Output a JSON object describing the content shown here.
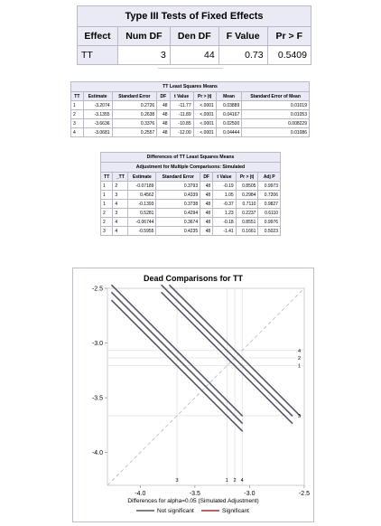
{
  "type3": {
    "title": "Type III Tests of Fixed Effects",
    "headers": [
      "Effect",
      "Num DF",
      "Den DF",
      "F Value",
      "Pr > F"
    ],
    "row": [
      "TT",
      "3",
      "44",
      "0.73",
      "0.5409"
    ]
  },
  "lsmeans": {
    "title": "TT Least Squares Means",
    "headers": [
      "TT",
      "Estimate",
      "Standard Error",
      "DF",
      "t Value",
      "Pr > |t|",
      "Mean",
      "Standard Error of Mean"
    ],
    "rows": [
      [
        "1",
        "-3.2074",
        "0.2726",
        "48",
        "-11.77",
        "<.0001",
        "0.03889",
        "0.01019"
      ],
      [
        "2",
        "-3.1355",
        "0.2638",
        "48",
        "-11.89",
        "<.0001",
        "0.04167",
        "0.01053"
      ],
      [
        "3",
        "-3.6636",
        "0.3376",
        "48",
        "-10.85",
        "<.0001",
        "0.02500",
        "0.008229"
      ],
      [
        "4",
        "-3.0681",
        "0.2557",
        "48",
        "-12.00",
        "<.0001",
        "0.04444",
        "0.01086"
      ]
    ]
  },
  "diffs": {
    "title1": "Differences of TT Least Squares Means",
    "title2": "Adjustment for Multiple Comparisons: Simulated",
    "headers": [
      "TT",
      "_TT",
      "Estimate",
      "Standard Error",
      "DF",
      "t Value",
      "Pr > |t|",
      "Adj P"
    ],
    "rows": [
      [
        "1",
        "2",
        "-0.07189",
        "0.3793",
        "48",
        "-0.19",
        "0.8505",
        "0.9973"
      ],
      [
        "1",
        "3",
        "0.4562",
        "0.4339",
        "48",
        "1.05",
        "0.2984",
        "0.7206"
      ],
      [
        "1",
        "4",
        "-0.1393",
        "0.3738",
        "48",
        "-0.37",
        "0.7110",
        "0.9827"
      ],
      [
        "2",
        "3",
        "0.5281",
        "0.4294",
        "48",
        "1.23",
        "0.2237",
        "0.6110"
      ],
      [
        "2",
        "4",
        "-0.06744",
        "0.3674",
        "48",
        "-0.18",
        "0.8551",
        "0.9976"
      ],
      [
        "3",
        "4",
        "-0.5955",
        "0.4235",
        "48",
        "-1.41",
        "0.1661",
        "0.5023"
      ]
    ]
  },
  "chart_data": {
    "type": "line",
    "title": "Dead Comparisons for TT",
    "xlabel": "Differences for alpha=0.05 (Simulated Adjustment)",
    "xlim": [
      -4.3,
      -2.5
    ],
    "ylim": [
      -4.3,
      -2.5
    ],
    "xticks": [
      -4.0,
      -3.5,
      -3.0,
      -2.5
    ],
    "yticks": [
      -2.5,
      -3.0,
      -3.5,
      -4.0
    ],
    "xtick_labels": [
      "-4.0",
      "-3.5",
      "-3.0",
      "-2.5"
    ],
    "ytick_labels": [
      "-2.5",
      "-3.0",
      "-3.5",
      "-4.0"
    ],
    "levels": [
      {
        "name": "1",
        "estimate": -3.2074
      },
      {
        "name": "2",
        "estimate": -3.1355
      },
      {
        "name": "3",
        "estimate": -3.6636
      },
      {
        "name": "4",
        "estimate": -3.0681
      }
    ],
    "comparisons": [
      {
        "pair": [
          "1",
          "2"
        ],
        "significant": false
      },
      {
        "pair": [
          "1",
          "3"
        ],
        "significant": false
      },
      {
        "pair": [
          "1",
          "4"
        ],
        "significant": false
      },
      {
        "pair": [
          "2",
          "3"
        ],
        "significant": false
      },
      {
        "pair": [
          "2",
          "4"
        ],
        "significant": false
      },
      {
        "pair": [
          "3",
          "4"
        ],
        "significant": false
      }
    ],
    "legend": {
      "placement": "bottom",
      "entries": [
        {
          "label": "Not significant",
          "color": "#555566"
        },
        {
          "label": "Significant",
          "color": "#a03030"
        }
      ]
    },
    "colors": {
      "segment": "#555566",
      "diagonal": "#b8c4d4",
      "reference": "#dadada"
    }
  }
}
